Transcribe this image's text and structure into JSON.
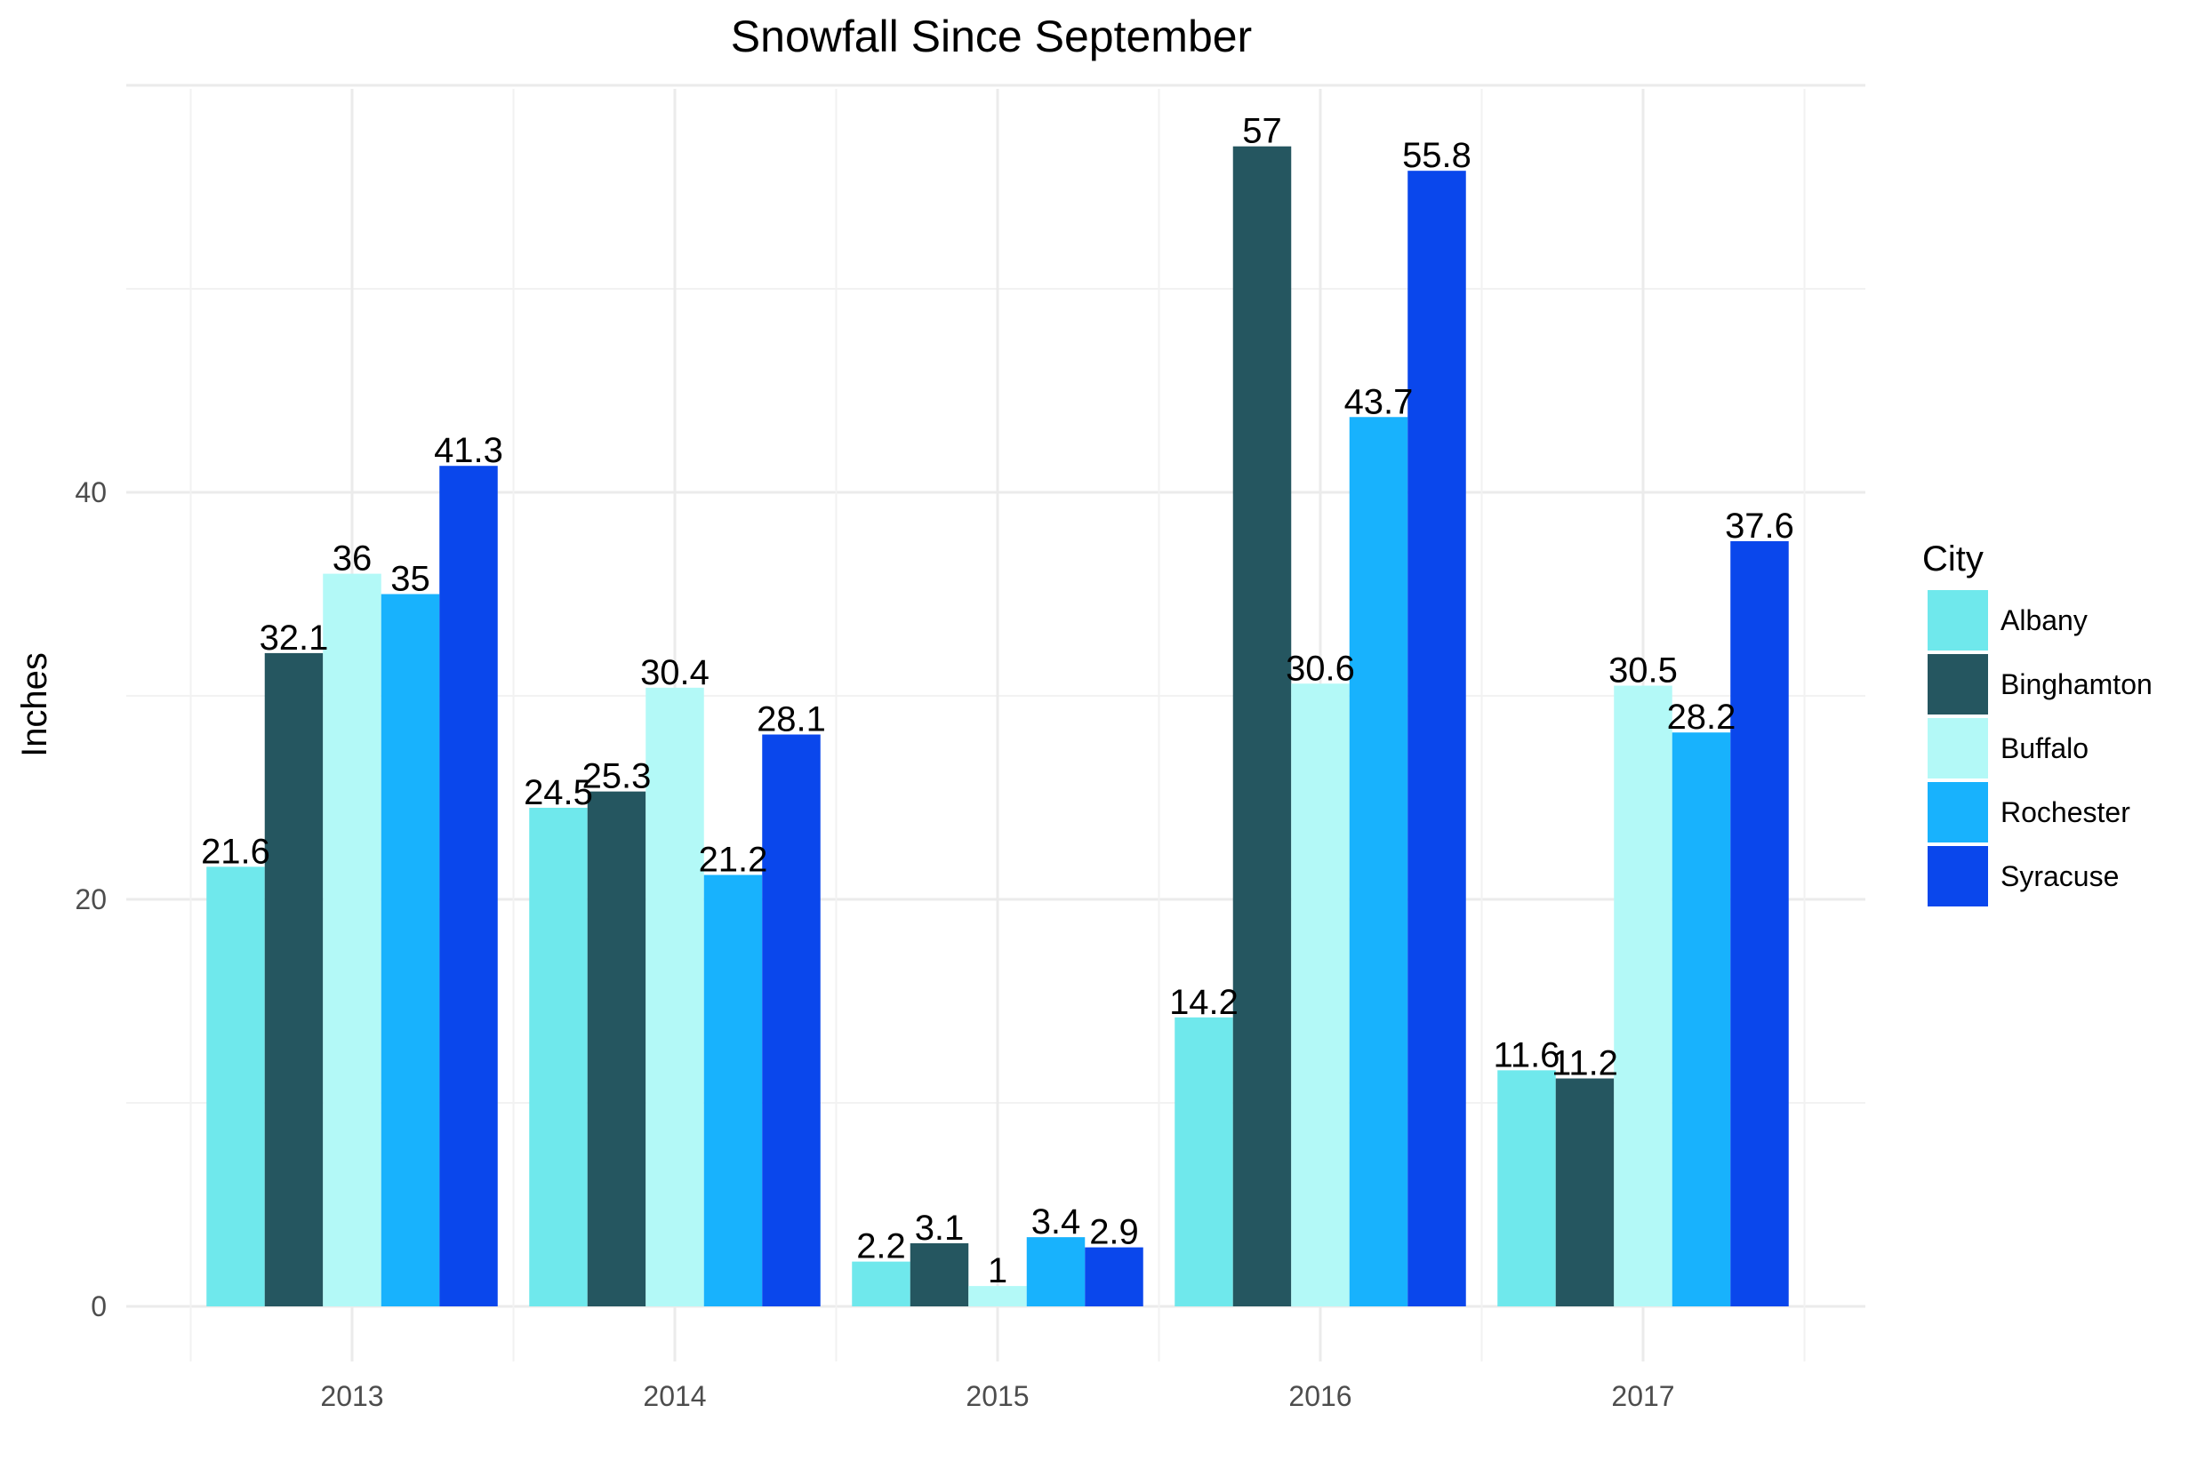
{
  "chart_data": {
    "type": "bar",
    "title": "Snowfall Since September",
    "xlabel": "",
    "ylabel": "Inches",
    "categories": [
      "2013",
      "2014",
      "2015",
      "2016",
      "2017"
    ],
    "series": [
      {
        "name": "Albany",
        "color": "#6FE8EC",
        "values": [
          21.6,
          24.5,
          2.2,
          14.2,
          11.6
        ]
      },
      {
        "name": "Binghamton",
        "color": "#255660",
        "values": [
          32.1,
          25.3,
          3.1,
          57,
          11.2
        ]
      },
      {
        "name": "Buffalo",
        "color": "#B3F9F7",
        "values": [
          36,
          30.4,
          1,
          30.6,
          30.5
        ]
      },
      {
        "name": "Rochester",
        "color": "#18B2FD",
        "values": [
          35,
          21.2,
          3.4,
          43.7,
          28.2
        ]
      },
      {
        "name": "Syracuse",
        "color": "#0A47EC",
        "values": [
          41.3,
          28.1,
          2.9,
          55.8,
          37.6
        ]
      }
    ],
    "yticks": [
      "0",
      "20",
      "40"
    ],
    "ylim": [
      -3,
      60
    ],
    "grid": true,
    "legend": {
      "title": "City",
      "position": "right"
    }
  }
}
